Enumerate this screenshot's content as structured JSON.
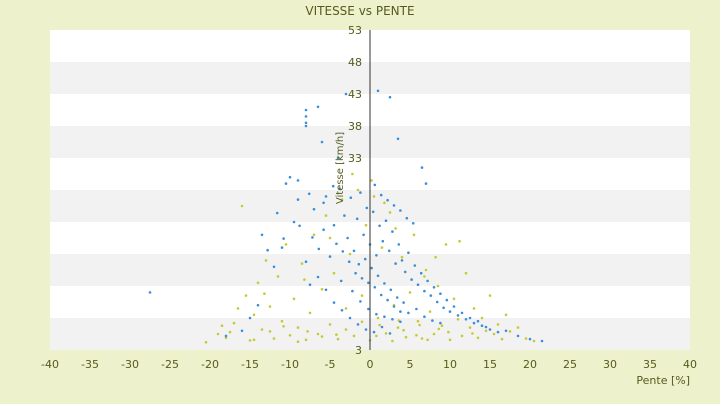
{
  "chart_data": {
    "type": "scatter",
    "title": "VITESSE vs PENTE",
    "xlabel": "Pente [%]",
    "ylabel": "Vitesse [km/h]",
    "xlim": [
      -40,
      40
    ],
    "ylim": [
      3,
      53
    ],
    "x_ticks": [
      -40,
      -35,
      -30,
      -25,
      -20,
      -15,
      -10,
      -5,
      0,
      5,
      10,
      15,
      20,
      25,
      30,
      35,
      40
    ],
    "y_ticks": [
      3,
      8,
      13,
      18,
      23,
      28,
      33,
      38,
      43,
      48,
      53
    ],
    "y_tick_labels": [
      "3",
      "",
      "",
      "",
      "",
      "",
      "33",
      "38",
      "43",
      "48",
      "53"
    ],
    "grid": "horizontal alternating bands",
    "legend": "none",
    "series": [
      {
        "color": "#c8c832",
        "marker": "dot",
        "points": [
          [
            -20.5,
            4.2
          ],
          [
            -19,
            5.5
          ],
          [
            -18.5,
            6.8
          ],
          [
            -18,
            4.9
          ],
          [
            -17.5,
            5.8
          ],
          [
            -17,
            7.2
          ],
          [
            -16.5,
            9.5
          ],
          [
            -16,
            25.5
          ],
          [
            -15.5,
            11.5
          ],
          [
            -15,
            4.5
          ],
          [
            -14.5,
            8.5
          ],
          [
            -14,
            13.5
          ],
          [
            -13.5,
            6.2
          ],
          [
            -13,
            17
          ],
          [
            -12.5,
            9.8
          ],
          [
            -12,
            4.8
          ],
          [
            -11.5,
            14.5
          ],
          [
            -11,
            7.5
          ],
          [
            -10.5,
            19.5
          ],
          [
            -10,
            5.3
          ],
          [
            -9.5,
            11
          ],
          [
            -9,
            6.5
          ],
          [
            -8.5,
            16.5
          ],
          [
            -8,
            4.6
          ],
          [
            -7.5,
            8.8
          ],
          [
            -7,
            21
          ],
          [
            -6.5,
            5.5
          ],
          [
            -6,
            12.5
          ],
          [
            -5.5,
            24
          ],
          [
            -5,
            7
          ],
          [
            -4.5,
            15
          ],
          [
            -4,
            4.7
          ],
          [
            -3.5,
            26.5
          ],
          [
            -3,
            9.5
          ],
          [
            -2.5,
            18
          ],
          [
            -2,
            5.2
          ],
          [
            -1.5,
            28
          ],
          [
            -1,
            11.5
          ],
          [
            -0.5,
            22.5
          ],
          [
            0,
            4.5
          ],
          [
            0.5,
            27
          ],
          [
            1,
            8
          ],
          [
            1.5,
            19
          ],
          [
            2,
            5.6
          ],
          [
            2.5,
            24.5
          ],
          [
            3,
            10
          ],
          [
            3.5,
            6.5
          ],
          [
            4,
            17.5
          ],
          [
            4.5,
            5
          ],
          [
            5,
            12
          ],
          [
            5.5,
            21
          ],
          [
            6,
            7.5
          ],
          [
            6.5,
            4.8
          ],
          [
            7,
            15.5
          ],
          [
            7.5,
            9
          ],
          [
            8,
            5.5
          ],
          [
            8.5,
            13
          ],
          [
            9,
            6.8
          ],
          [
            9.5,
            19.5
          ],
          [
            10,
            4.6
          ],
          [
            10.5,
            11
          ],
          [
            11,
            7.8
          ],
          [
            11.5,
            5.2
          ],
          [
            12,
            15
          ],
          [
            12.5,
            6.5
          ],
          [
            13,
            9.5
          ],
          [
            13.5,
            4.9
          ],
          [
            14,
            8
          ],
          [
            14.5,
            6
          ],
          [
            15,
            11.5
          ],
          [
            15.5,
            5.5
          ],
          [
            16,
            7
          ],
          [
            16.5,
            4.7
          ],
          [
            17,
            8.5
          ],
          [
            17.5,
            5.9
          ],
          [
            18.5,
            6.5
          ],
          [
            19.5,
            4.8
          ],
          [
            20.5,
            4.4
          ],
          [
            -9,
            4.3
          ],
          [
            -6,
            5.1
          ],
          [
            -3,
            6.2
          ],
          [
            -1,
            7.4
          ],
          [
            1.2,
            6.9
          ],
          [
            2.8,
            4.4
          ],
          [
            4.2,
            6.1
          ],
          [
            5.8,
            5.3
          ],
          [
            7.2,
            4.6
          ],
          [
            8.6,
            6.3
          ],
          [
            -12.5,
            5.9
          ],
          [
            -14.5,
            4.6
          ],
          [
            -10.8,
            6.7
          ],
          [
            -7.8,
            5.9
          ],
          [
            -4.2,
            5.4
          ],
          [
            0.8,
            5.2
          ],
          [
            3.6,
            7.6
          ],
          [
            6.2,
            6.9
          ],
          [
            9.8,
            5.8
          ],
          [
            12.8,
            5.6
          ],
          [
            -2.2,
            30.5
          ],
          [
            0.2,
            29.5
          ],
          [
            1.8,
            26
          ],
          [
            -5,
            20.5
          ],
          [
            3.2,
            22
          ],
          [
            -8.2,
            14
          ],
          [
            6.8,
            14.5
          ],
          [
            8.2,
            17.5
          ],
          [
            -13.2,
            11.8
          ],
          [
            11.2,
            20
          ]
        ]
      },
      {
        "color": "#3a8fd6",
        "marker": "dot",
        "points": [
          [
            -27.5,
            12
          ],
          [
            -10.5,
            29
          ],
          [
            -10,
            30
          ],
          [
            -9,
            29.5
          ],
          [
            -8,
            40.5
          ],
          [
            -8,
            39.5
          ],
          [
            -8,
            38.5
          ],
          [
            -8,
            38
          ],
          [
            -6.5,
            41
          ],
          [
            -6,
            35.5
          ],
          [
            -4,
            33
          ],
          [
            -3,
            43
          ],
          [
            1,
            43.5
          ],
          [
            2.5,
            42.5
          ],
          [
            3.5,
            36
          ],
          [
            6.5,
            31.5
          ],
          [
            7,
            29
          ],
          [
            -11,
            19
          ],
          [
            -12,
            16
          ],
          [
            -9.5,
            23
          ],
          [
            -7,
            25
          ],
          [
            -5.5,
            27
          ],
          [
            -4.5,
            22.5
          ],
          [
            -3.8,
            28.2
          ],
          [
            -3.2,
            24
          ],
          [
            -2.8,
            20.5
          ],
          [
            -2.4,
            26.8
          ],
          [
            -2,
            18.5
          ],
          [
            -1.6,
            23.5
          ],
          [
            -1.2,
            27.6
          ],
          [
            -0.8,
            21
          ],
          [
            -0.4,
            25.2
          ],
          [
            0,
            19.5
          ],
          [
            0.4,
            24.6
          ],
          [
            0.8,
            17.8
          ],
          [
            1.2,
            22.4
          ],
          [
            1.6,
            20
          ],
          [
            2,
            23.2
          ],
          [
            2.4,
            18.5
          ],
          [
            2.8,
            21.5
          ],
          [
            3.2,
            16.5
          ],
          [
            3.6,
            19.5
          ],
          [
            4,
            17
          ],
          [
            4.4,
            15.2
          ],
          [
            4.8,
            18.2
          ],
          [
            5.2,
            14
          ],
          [
            5.6,
            16.2
          ],
          [
            6,
            13.2
          ],
          [
            6.4,
            15
          ],
          [
            6.8,
            12.2
          ],
          [
            7.2,
            13.8
          ],
          [
            7.6,
            11.5
          ],
          [
            8,
            12.8
          ],
          [
            8.4,
            10.5
          ],
          [
            8.8,
            11.8
          ],
          [
            9.2,
            9.6
          ],
          [
            9.6,
            10.8
          ],
          [
            10,
            9
          ],
          [
            10.5,
            9.8
          ],
          [
            11,
            8.4
          ],
          [
            11.5,
            8.8
          ],
          [
            12,
            7.8
          ],
          [
            12.5,
            8
          ],
          [
            13,
            7.2
          ],
          [
            13.5,
            7.5
          ],
          [
            14,
            6.8
          ],
          [
            14.5,
            6.6
          ],
          [
            15,
            6.2
          ],
          [
            -1.8,
            15
          ],
          [
            -1.4,
            16.4
          ],
          [
            -1,
            14.2
          ],
          [
            -0.6,
            17.2
          ],
          [
            -0.2,
            13.5
          ],
          [
            0.2,
            15.8
          ],
          [
            0.6,
            12.8
          ],
          [
            1,
            14.6
          ],
          [
            1.4,
            11.6
          ],
          [
            1.8,
            13.4
          ],
          [
            2.2,
            10.8
          ],
          [
            2.6,
            12.4
          ],
          [
            3,
            9.8
          ],
          [
            3.4,
            11.2
          ],
          [
            3.8,
            9
          ],
          [
            4.2,
            10.4
          ],
          [
            -2.6,
            16.8
          ],
          [
            -3.4,
            18.4
          ],
          [
            -4.2,
            19.6
          ],
          [
            -5,
            17.6
          ],
          [
            -5.8,
            21.8
          ],
          [
            -6.4,
            18.8
          ],
          [
            -7.2,
            20.6
          ],
          [
            -8,
            16.8
          ],
          [
            -8.8,
            22.4
          ],
          [
            -3.6,
            13.8
          ],
          [
            -2.2,
            12.2
          ],
          [
            -1.2,
            10.6
          ],
          [
            -0.2,
            9.4
          ],
          [
            0.8,
            8.6
          ],
          [
            1.8,
            8.2
          ],
          [
            2.8,
            7.8
          ],
          [
            3.8,
            7.4
          ],
          [
            4.8,
            8.8
          ],
          [
            5.8,
            9.4
          ],
          [
            6.8,
            8.2
          ],
          [
            7.8,
            7.6
          ],
          [
            8.8,
            7.2
          ],
          [
            -0.5,
            6.2
          ],
          [
            0.5,
            5.8
          ],
          [
            1.5,
            6.6
          ],
          [
            2.5,
            5.6
          ],
          [
            -1.5,
            7
          ],
          [
            -2.5,
            8
          ],
          [
            -3.5,
            9.2
          ],
          [
            -4.5,
            10.4
          ],
          [
            -5.5,
            12.4
          ],
          [
            -6.5,
            14.4
          ],
          [
            -7.5,
            13.2
          ],
          [
            -9,
            26.5
          ],
          [
            -7.6,
            27.4
          ],
          [
            -5.8,
            26
          ],
          [
            -4.6,
            28.6
          ],
          [
            0.6,
            28.8
          ],
          [
            1.4,
            27.2
          ],
          [
            2.2,
            26.4
          ],
          [
            3,
            25.6
          ],
          [
            3.8,
            24.8
          ],
          [
            4.6,
            23.6
          ],
          [
            5.4,
            22.8
          ],
          [
            -13.5,
            21
          ],
          [
            -12.8,
            18.6
          ],
          [
            -11.6,
            24.4
          ],
          [
            -10.8,
            20.4
          ],
          [
            16,
            5.8
          ],
          [
            17,
            6
          ],
          [
            18.5,
            5.2
          ],
          [
            20,
            4.7
          ],
          [
            21.5,
            4.4
          ],
          [
            -16,
            6
          ],
          [
            -15,
            8
          ],
          [
            -14,
            10
          ],
          [
            -18,
            5.2
          ]
        ]
      }
    ]
  }
}
